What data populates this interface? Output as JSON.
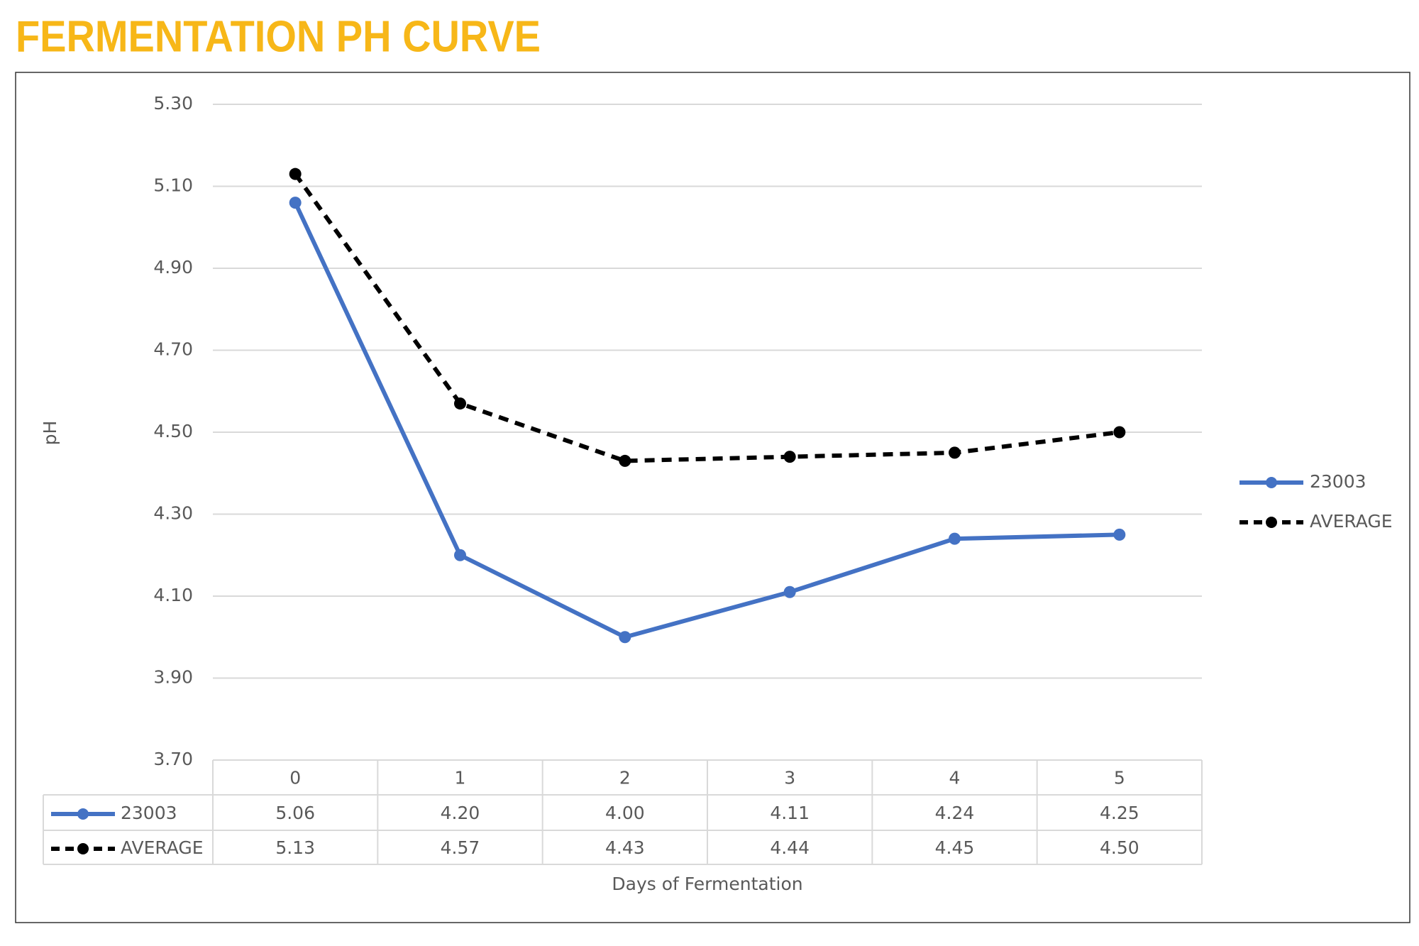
{
  "chart_data": {
    "type": "line",
    "title": "FERMENTATION PH CURVE",
    "x_label": "Days of Fermentation",
    "y_label": "pH",
    "categories": [
      "0",
      "1",
      "2",
      "3",
      "4",
      "5"
    ],
    "series": [
      {
        "name": "23003",
        "color": "#4472c4",
        "dashed": false,
        "values": [
          5.06,
          4.2,
          4.0,
          4.11,
          4.24,
          4.25
        ],
        "value_labels": [
          "5.06",
          "4.20",
          "4.00",
          "4.11",
          "4.24",
          "4.25"
        ]
      },
      {
        "name": "AVERAGE",
        "color": "#000000",
        "dashed": true,
        "values": [
          5.13,
          4.57,
          4.43,
          4.44,
          4.45,
          4.5
        ],
        "value_labels": [
          "5.13",
          "4.57",
          "4.43",
          "4.44",
          "4.45",
          "4.50"
        ]
      }
    ],
    "ylim": [
      3.7,
      5.3
    ],
    "yticks": [
      {
        "value": 3.7,
        "label": "3.70"
      },
      {
        "value": 3.9,
        "label": "3.90"
      },
      {
        "value": 4.1,
        "label": "4.10"
      },
      {
        "value": 4.3,
        "label": "4.30"
      },
      {
        "value": 4.5,
        "label": "4.50"
      },
      {
        "value": 4.7,
        "label": "4.70"
      },
      {
        "value": 4.9,
        "label": "4.90"
      },
      {
        "value": 5.1,
        "label": "5.10"
      },
      {
        "value": 5.3,
        "label": "5.30"
      }
    ],
    "grid": true,
    "legend": "right",
    "data_table": true
  }
}
